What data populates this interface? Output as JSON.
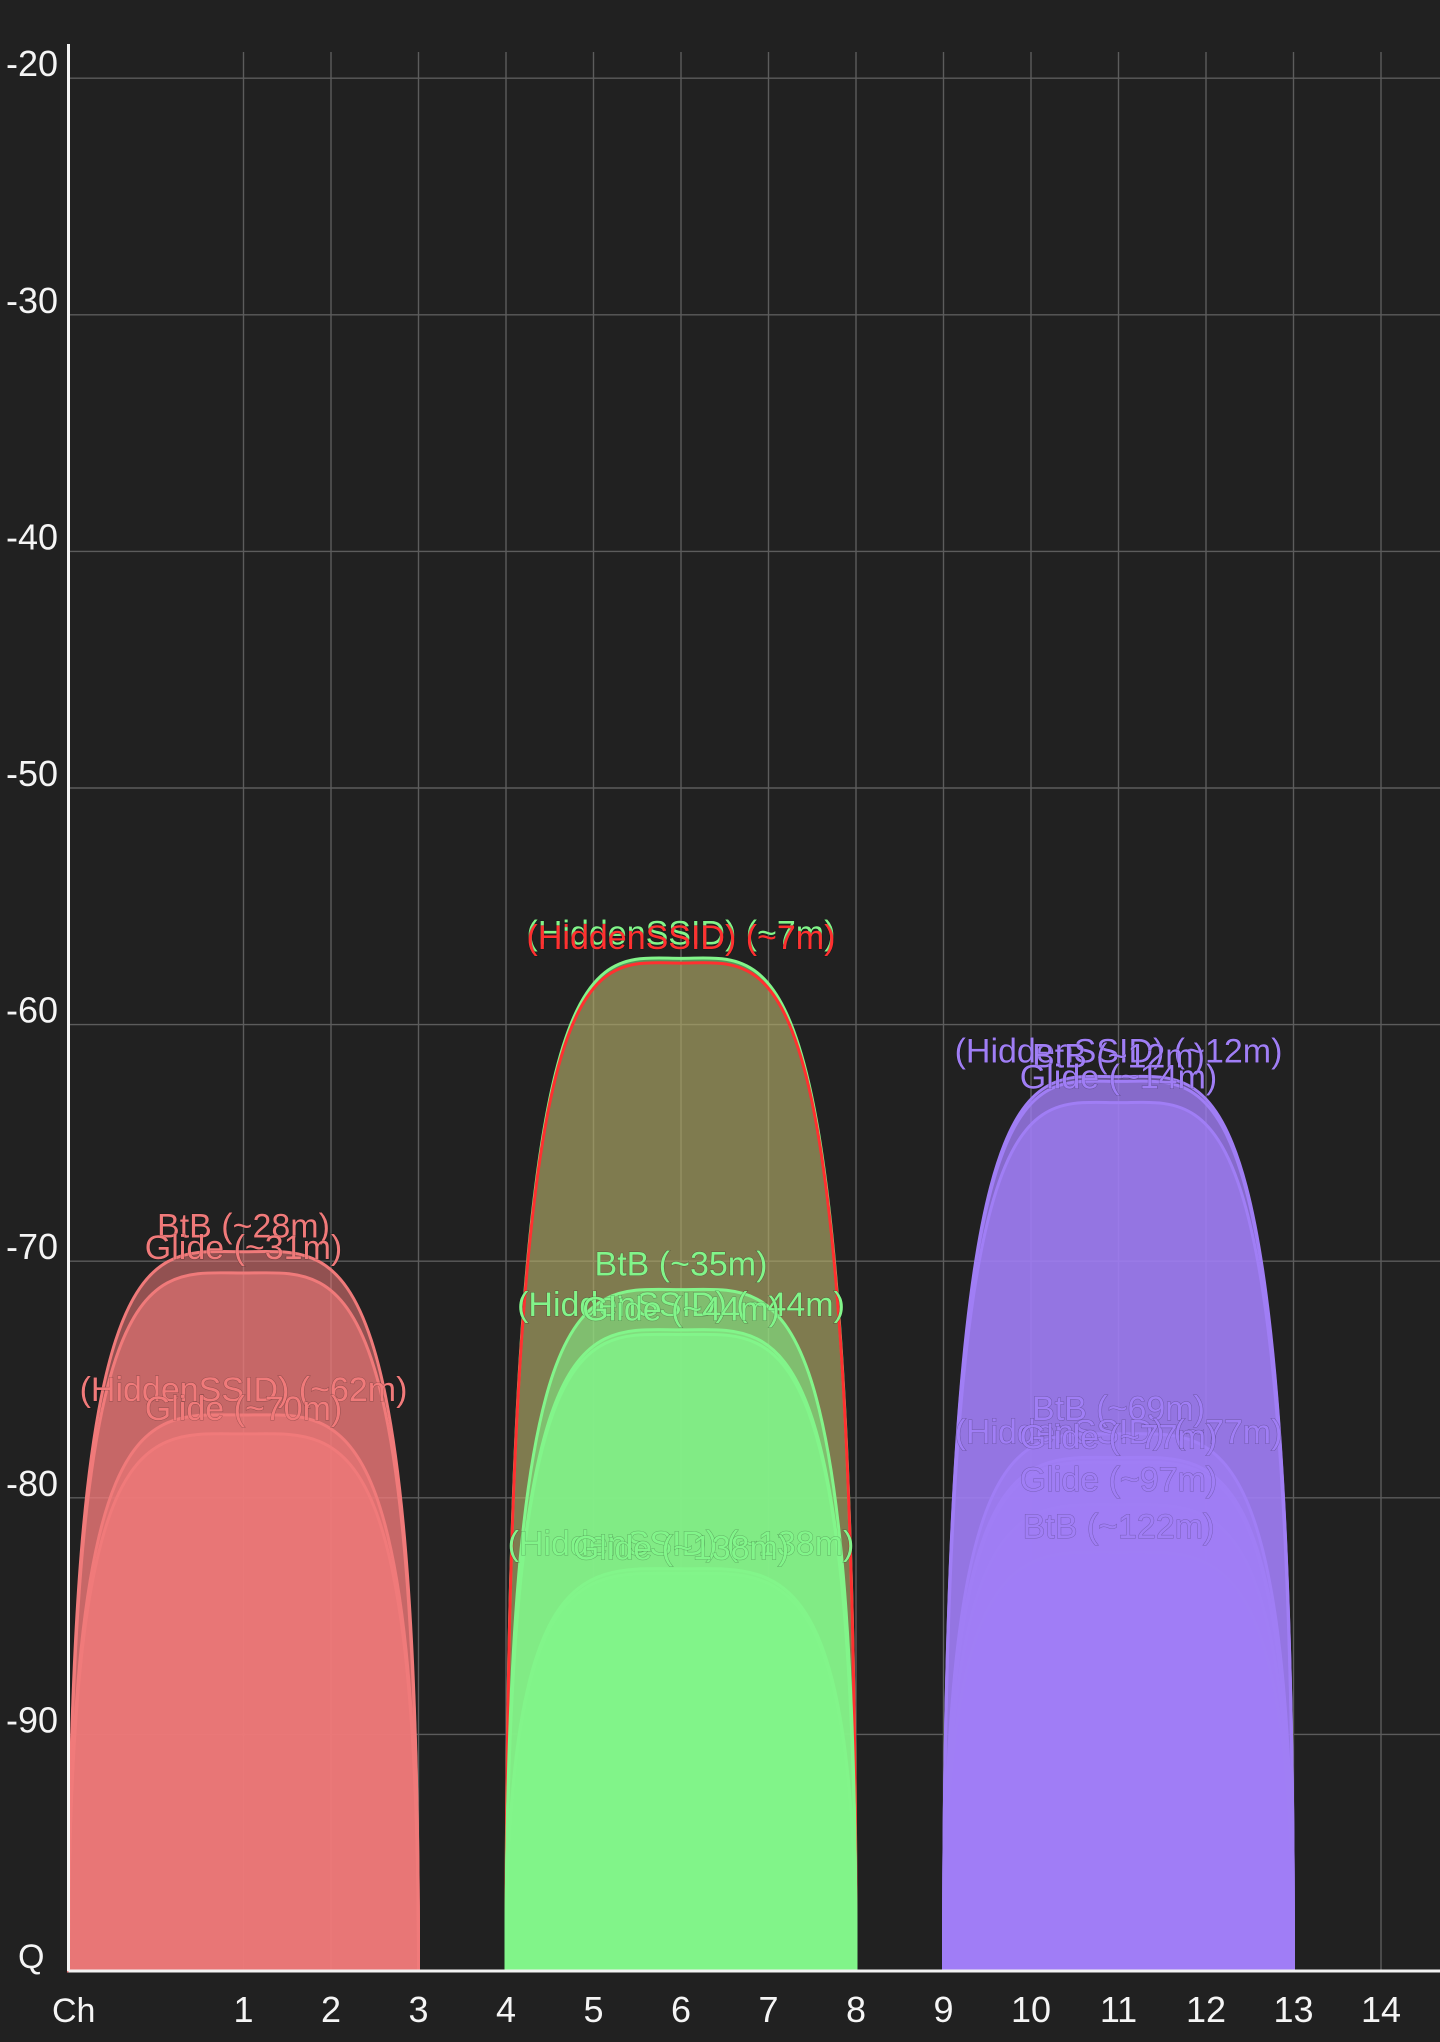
{
  "chart_data": {
    "type": "area",
    "title": "",
    "xlabel": "Ch",
    "ylabel": "Q",
    "x_ticks": [
      1,
      2,
      3,
      4,
      5,
      6,
      7,
      8,
      9,
      10,
      11,
      12,
      13,
      14
    ],
    "y_ticks": [
      -20,
      -30,
      -40,
      -50,
      -60,
      -70,
      -80,
      -90
    ],
    "xlim": [
      -1,
      15.6
    ],
    "ylim": [
      -100,
      -19.4
    ],
    "grid": true,
    "colors": {
      "group_ch1": "#f07a7a",
      "group_ch6": "#82f58a",
      "group_ch11": "#a07ef5",
      "highlight": "#ff3030"
    },
    "networks": [
      {
        "label": "BtB (~28m)",
        "channel": 1,
        "width": 4,
        "level": -69.6,
        "color": "#f07a7a"
      },
      {
        "label": "Glide (~31m)",
        "channel": 1,
        "width": 4,
        "level": -70.5,
        "color": "#f07a7a"
      },
      {
        "label": "(HiddenSSID) (~62m)",
        "channel": 1,
        "width": 4,
        "level": -76.5,
        "color": "#f07a7a"
      },
      {
        "label": "Glide (~70m)",
        "channel": 1,
        "width": 4,
        "level": -77.3,
        "color": "#f07a7a"
      },
      {
        "label": "(HiddenSSID) (~7m)",
        "channel": 6,
        "width": 4,
        "level": -57.2,
        "color": "#82f58a"
      },
      {
        "label": "(HiddenSSID) (~7m)",
        "channel": 6,
        "width": 4,
        "level": -57.4,
        "color": "#ff3030"
      },
      {
        "label": "BtB (~35m)",
        "channel": 6,
        "width": 4,
        "level": -71.2,
        "color": "#82f58a"
      },
      {
        "label": "(HiddenSSID) (~44m)",
        "channel": 6,
        "width": 4,
        "level": -72.9,
        "color": "#82f58a"
      },
      {
        "label": "Glide (~44m)",
        "channel": 6,
        "width": 4,
        "level": -73.1,
        "color": "#82f58a"
      },
      {
        "label": "(HiddenSSID) (~138m)",
        "channel": 6,
        "width": 4,
        "level": -83.0,
        "color": "#82f58a"
      },
      {
        "label": "Glide (~138m)",
        "channel": 6,
        "width": 4,
        "level": -83.2,
        "color": "#82f58a"
      },
      {
        "label": "(HiddenSSID) (~12m)",
        "channel": 11,
        "width": 4,
        "level": -62.2,
        "color": "#a07ef5"
      },
      {
        "label": "BtB (~12m)",
        "channel": 11,
        "width": 4,
        "level": -62.4,
        "color": "#a07ef5"
      },
      {
        "label": "Glide (~14m)",
        "channel": 11,
        "width": 4,
        "level": -63.3,
        "color": "#a07ef5"
      },
      {
        "label": "BtB (~69m)",
        "channel": 11,
        "width": 4,
        "level": -77.3,
        "color": "#a07ef5"
      },
      {
        "label": "(HiddenSSID) (~77m)",
        "channel": 11,
        "width": 4,
        "level": -78.3,
        "color": "#a07ef5"
      },
      {
        "label": "Glide (~77m)",
        "channel": 11,
        "width": 4,
        "level": -78.5,
        "color": "#a07ef5"
      },
      {
        "label": "Glide (~97m)",
        "channel": 11,
        "width": 4,
        "level": -80.3,
        "color": "#a07ef5"
      },
      {
        "label": "BtB (~122m)",
        "channel": 11,
        "width": 4,
        "level": -82.3,
        "color": "#a07ef5"
      }
    ]
  }
}
